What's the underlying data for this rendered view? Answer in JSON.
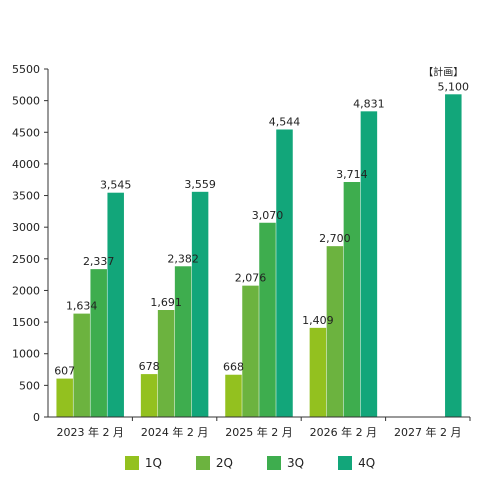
{
  "chart_data": {
    "type": "bar",
    "categories": [
      "2023 年 2 月",
      "2024 年 2 月",
      "2025 年 2 月",
      "2026 年 2 月",
      "2027 年 2 月"
    ],
    "series": [
      {
        "name": "1Q",
        "color": "#93c11f",
        "values": [
          607,
          678,
          668,
          1409,
          null
        ],
        "labels": [
          "607",
          "678",
          "668",
          "1,409",
          ""
        ]
      },
      {
        "name": "2Q",
        "color": "#6cb33f",
        "values": [
          1634,
          1691,
          2076,
          2700,
          null
        ],
        "labels": [
          "1,634",
          "1,691",
          "2,076",
          "2,700",
          ""
        ]
      },
      {
        "name": "3Q",
        "color": "#3ead4e",
        "values": [
          2337,
          2382,
          3070,
          3714,
          null
        ],
        "labels": [
          "2,337",
          "2,382",
          "3,070",
          "3,714",
          ""
        ]
      },
      {
        "name": "4Q",
        "color": "#12a67a",
        "values": [
          3545,
          3559,
          4544,
          4831,
          5100
        ],
        "labels": [
          "3,545",
          "3,559",
          "4,544",
          "4,831",
          "5,100"
        ]
      }
    ],
    "yticks": [
      "0",
      "500",
      "1000",
      "1500",
      "2000",
      "2500",
      "3000",
      "3500",
      "4000",
      "4500",
      "5000",
      "5500"
    ],
    "ylim": [
      0,
      5500
    ],
    "annotation": "【計画】",
    "grid": false,
    "legend_position": "bottom"
  }
}
